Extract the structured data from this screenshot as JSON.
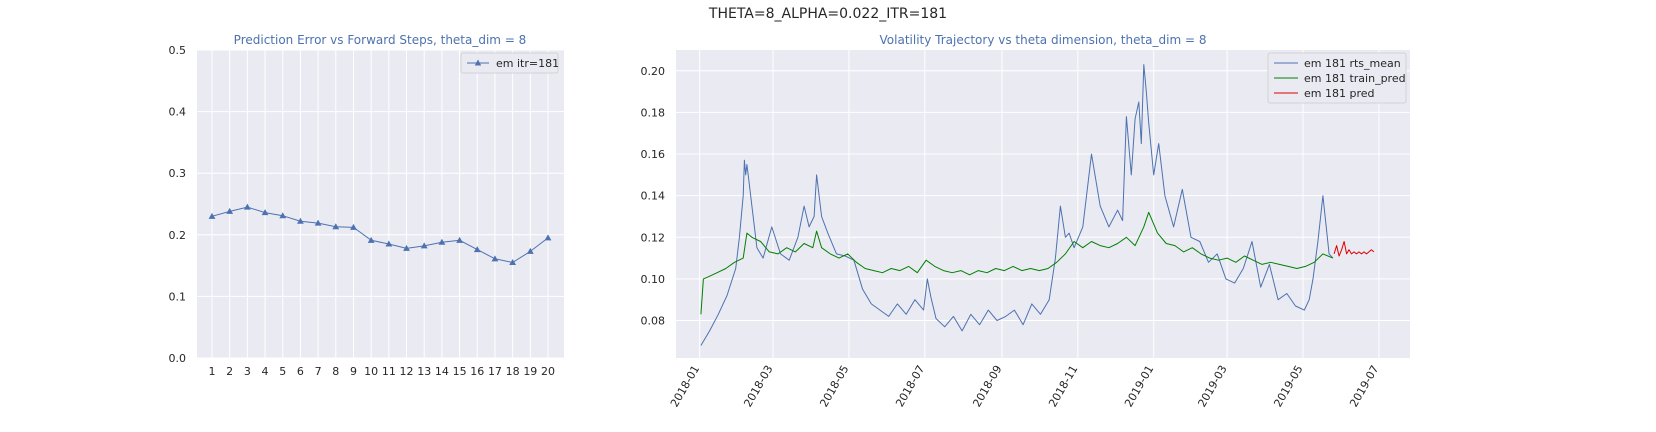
{
  "figure": {
    "title": "THETA=8_ALPHA=0.022_ITR=181"
  },
  "chart_data": [
    {
      "type": "line",
      "title": "Prediction Error vs Forward Steps, theta_dim = 8",
      "xlabel": "",
      "ylabel": "",
      "categories": [
        "1",
        "2",
        "3",
        "4",
        "5",
        "6",
        "7",
        "8",
        "9",
        "10",
        "11",
        "12",
        "13",
        "14",
        "15",
        "16",
        "17",
        "18",
        "19",
        "20"
      ],
      "ylim": [
        0,
        0.5
      ],
      "y_ticks": [
        "0.0",
        "0.1",
        "0.2",
        "0.3",
        "0.4",
        "0.5"
      ],
      "grid": true,
      "legend": "top-right",
      "series": [
        {
          "name": "em itr=181",
          "color": "#4c72b0",
          "marker": "triangle",
          "values": [
            0.23,
            0.238,
            0.245,
            0.236,
            0.231,
            0.222,
            0.219,
            0.213,
            0.212,
            0.191,
            0.185,
            0.178,
            0.182,
            0.188,
            0.191,
            0.176,
            0.161,
            0.155,
            0.173,
            0.195
          ]
        }
      ]
    },
    {
      "type": "line",
      "title": "Volatility Trajectory vs theta dimension, theta_dim = 8",
      "xlabel": "",
      "ylabel": "",
      "x_ticks": [
        "2018-01",
        "2018-03",
        "2018-05",
        "2018-07",
        "2018-09",
        "2018-11",
        "2019-01",
        "2019-03",
        "2019-05",
        "2019-07"
      ],
      "xlim": [
        "2017-12-13",
        "2019-07-26"
      ],
      "ylim": [
        0.062,
        0.21
      ],
      "y_ticks": [
        "0.08",
        "0.10",
        "0.12",
        "0.14",
        "0.16",
        "0.18",
        "0.20"
      ],
      "grid": true,
      "legend": "top-right",
      "series": [
        {
          "name": "em 181 rts_mean",
          "color": "#4c72b0",
          "x": [
            "2018-01-02",
            "2018-01-09",
            "2018-01-16",
            "2018-01-23",
            "2018-01-30",
            "2018-02-02",
            "2018-02-05",
            "2018-02-06",
            "2018-02-07",
            "2018-02-08",
            "2018-02-09",
            "2018-02-12",
            "2018-02-16",
            "2018-02-21",
            "2018-02-28",
            "2018-03-07",
            "2018-03-14",
            "2018-03-21",
            "2018-03-26",
            "2018-03-30",
            "2018-04-03",
            "2018-04-05",
            "2018-04-09",
            "2018-04-14",
            "2018-04-21",
            "2018-04-28",
            "2018-05-05",
            "2018-05-12",
            "2018-05-19",
            "2018-05-26",
            "2018-06-02",
            "2018-06-09",
            "2018-06-16",
            "2018-06-23",
            "2018-06-30",
            "2018-07-03",
            "2018-07-06",
            "2018-07-10",
            "2018-07-17",
            "2018-07-24",
            "2018-07-31",
            "2018-08-07",
            "2018-08-14",
            "2018-08-21",
            "2018-08-28",
            "2018-09-04",
            "2018-09-11",
            "2018-09-18",
            "2018-09-25",
            "2018-10-02",
            "2018-10-09",
            "2018-10-14",
            "2018-10-18",
            "2018-10-22",
            "2018-10-25",
            "2018-10-29",
            "2018-11-05",
            "2018-11-12",
            "2018-11-19",
            "2018-11-26",
            "2018-12-03",
            "2018-12-07",
            "2018-12-10",
            "2018-12-14",
            "2018-12-17",
            "2018-12-20",
            "2018-12-22",
            "2018-12-24",
            "2018-12-26",
            "2018-12-28",
            "2019-01-01",
            "2019-01-05",
            "2019-01-10",
            "2019-01-17",
            "2019-01-24",
            "2019-01-31",
            "2019-02-07",
            "2019-02-14",
            "2019-02-21",
            "2019-02-28",
            "2019-03-07",
            "2019-03-14",
            "2019-03-21",
            "2019-03-28",
            "2019-04-04",
            "2019-04-11",
            "2019-04-18",
            "2019-04-25",
            "2019-05-02",
            "2019-05-06",
            "2019-05-09",
            "2019-05-13",
            "2019-05-17",
            "2019-05-22",
            "2019-05-25"
          ],
          "y": [
            0.068,
            0.075,
            0.083,
            0.092,
            0.105,
            0.12,
            0.14,
            0.157,
            0.15,
            0.155,
            0.15,
            0.135,
            0.115,
            0.11,
            0.125,
            0.112,
            0.109,
            0.12,
            0.135,
            0.125,
            0.13,
            0.15,
            0.13,
            0.122,
            0.112,
            0.111,
            0.109,
            0.095,
            0.088,
            0.085,
            0.082,
            0.088,
            0.083,
            0.09,
            0.085,
            0.1,
            0.091,
            0.081,
            0.077,
            0.082,
            0.075,
            0.083,
            0.078,
            0.085,
            0.08,
            0.082,
            0.085,
            0.078,
            0.088,
            0.083,
            0.09,
            0.11,
            0.135,
            0.12,
            0.122,
            0.115,
            0.125,
            0.16,
            0.135,
            0.125,
            0.133,
            0.128,
            0.178,
            0.15,
            0.177,
            0.185,
            0.165,
            0.203,
            0.19,
            0.175,
            0.15,
            0.165,
            0.14,
            0.125,
            0.143,
            0.12,
            0.118,
            0.108,
            0.112,
            0.1,
            0.098,
            0.105,
            0.118,
            0.096,
            0.107,
            0.09,
            0.093,
            0.087,
            0.085,
            0.09,
            0.1,
            0.118,
            0.14,
            0.112,
            0.11
          ]
        },
        {
          "name": "em 181 train_pred",
          "color": "#008000",
          "x": [
            "2018-01-02",
            "2018-01-04",
            "2018-01-08",
            "2018-01-15",
            "2018-01-22",
            "2018-01-29",
            "2018-02-05",
            "2018-02-08",
            "2018-02-12",
            "2018-02-19",
            "2018-02-26",
            "2018-03-05",
            "2018-03-12",
            "2018-03-19",
            "2018-03-26",
            "2018-04-02",
            "2018-04-05",
            "2018-04-09",
            "2018-04-16",
            "2018-04-23",
            "2018-04-30",
            "2018-05-07",
            "2018-05-14",
            "2018-05-21",
            "2018-05-28",
            "2018-06-04",
            "2018-06-11",
            "2018-06-18",
            "2018-06-25",
            "2018-07-02",
            "2018-07-09",
            "2018-07-16",
            "2018-07-23",
            "2018-07-30",
            "2018-08-06",
            "2018-08-13",
            "2018-08-20",
            "2018-08-27",
            "2018-09-03",
            "2018-09-10",
            "2018-09-17",
            "2018-09-24",
            "2018-10-01",
            "2018-10-08",
            "2018-10-15",
            "2018-10-22",
            "2018-10-29",
            "2018-11-05",
            "2018-11-12",
            "2018-11-19",
            "2018-11-26",
            "2018-12-03",
            "2018-12-10",
            "2018-12-17",
            "2018-12-24",
            "2018-12-28",
            "2019-01-04",
            "2019-01-11",
            "2019-01-18",
            "2019-01-25",
            "2019-02-01",
            "2019-02-08",
            "2019-02-15",
            "2019-02-22",
            "2019-03-01",
            "2019-03-08",
            "2019-03-15",
            "2019-03-22",
            "2019-03-29",
            "2019-04-05",
            "2019-04-12",
            "2019-04-19",
            "2019-04-26",
            "2019-05-03",
            "2019-05-10",
            "2019-05-17",
            "2019-05-25"
          ],
          "y": [
            0.083,
            0.1,
            0.101,
            0.103,
            0.105,
            0.108,
            0.11,
            0.122,
            0.12,
            0.118,
            0.113,
            0.112,
            0.115,
            0.113,
            0.117,
            0.115,
            0.123,
            0.115,
            0.112,
            0.11,
            0.112,
            0.108,
            0.105,
            0.104,
            0.103,
            0.105,
            0.104,
            0.106,
            0.103,
            0.109,
            0.106,
            0.104,
            0.103,
            0.104,
            0.102,
            0.104,
            0.103,
            0.105,
            0.104,
            0.106,
            0.104,
            0.105,
            0.104,
            0.105,
            0.108,
            0.112,
            0.118,
            0.115,
            0.118,
            0.116,
            0.115,
            0.117,
            0.12,
            0.116,
            0.125,
            0.132,
            0.122,
            0.117,
            0.116,
            0.113,
            0.115,
            0.112,
            0.11,
            0.109,
            0.11,
            0.108,
            0.111,
            0.109,
            0.107,
            0.108,
            0.107,
            0.106,
            0.105,
            0.106,
            0.108,
            0.112,
            0.11
          ]
        },
        {
          "name": "em 181 pred",
          "color": "#e00000",
          "x": [
            "2019-05-26",
            "2019-05-28",
            "2019-05-30",
            "2019-06-01",
            "2019-06-03",
            "2019-06-05",
            "2019-06-07",
            "2019-06-09",
            "2019-06-11",
            "2019-06-13",
            "2019-06-15",
            "2019-06-17",
            "2019-06-19",
            "2019-06-21",
            "2019-06-23",
            "2019-06-25",
            "2019-06-27"
          ],
          "y": [
            0.112,
            0.116,
            0.111,
            0.114,
            0.118,
            0.112,
            0.114,
            0.112,
            0.113,
            0.112,
            0.113,
            0.112,
            0.113,
            0.112,
            0.113,
            0.114,
            0.113
          ]
        }
      ]
    }
  ]
}
